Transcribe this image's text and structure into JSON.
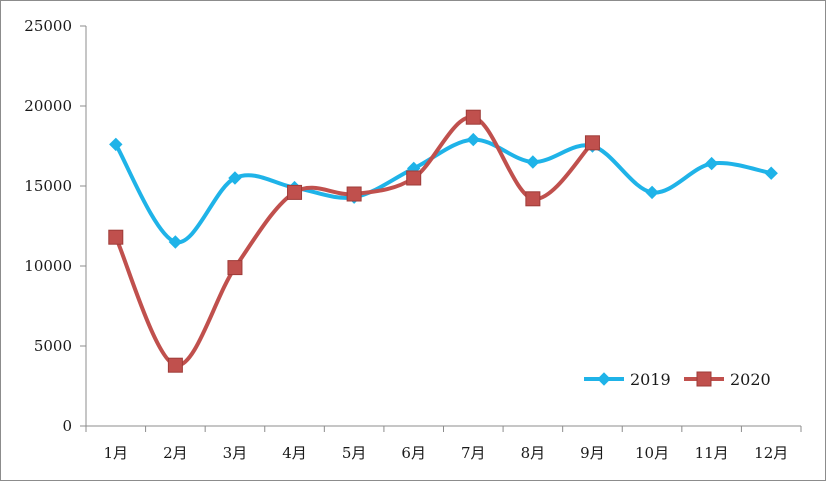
{
  "chart_data": {
    "type": "line",
    "categories": [
      "1月",
      "2月",
      "3月",
      "4月",
      "5月",
      "6月",
      "7月",
      "8月",
      "9月",
      "10月",
      "11月",
      "12月"
    ],
    "series": [
      {
        "name": "2019",
        "color": "#1fb3e8",
        "marker": "diamond",
        "values": [
          17600,
          11500,
          15500,
          14900,
          14300,
          16100,
          17900,
          16500,
          17500,
          14600,
          16400,
          15800
        ]
      },
      {
        "name": "2020",
        "color": "#c0504d",
        "marker": "square",
        "values": [
          11800,
          3800,
          9900,
          14600,
          14500,
          15500,
          19300,
          14200,
          17700,
          null,
          null,
          null
        ]
      }
    ],
    "yticks": [
      0,
      5000,
      10000,
      15000,
      20000,
      25000
    ],
    "ylim": [
      0,
      25000
    ],
    "smooth": true,
    "grid": false,
    "legend": "bottom-right"
  }
}
